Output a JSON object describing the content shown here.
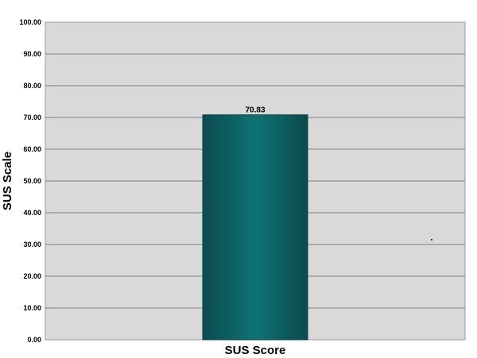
{
  "chart_data": {
    "type": "bar",
    "categories": [
      "SUS Score"
    ],
    "values": [
      70.83
    ],
    "data_labels": [
      "70.83"
    ],
    "ylabel": "SUS Scale",
    "ylim": [
      0,
      100
    ],
    "yticks": [
      "0.00",
      "10.00",
      "20.00",
      "30.00",
      "40.00",
      "50.00",
      "60.00",
      "70.00",
      "80.00",
      "90.00",
      "100.00"
    ],
    "grid": true,
    "colors": {
      "plot_bg": "#d9d9d9",
      "gridline": "#808080",
      "bar_dark": "#0b4a4e",
      "bar_light": "#0e7374"
    }
  }
}
